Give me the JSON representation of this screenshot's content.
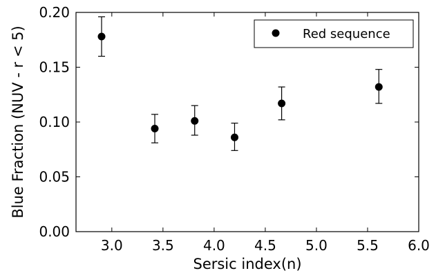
{
  "chart_data": {
    "type": "scatter",
    "title": "",
    "xlabel": "Sersic index(n)",
    "ylabel": "Blue Fraction (NUV - r < 5)",
    "xlim": [
      2.65,
      6.0
    ],
    "ylim": [
      0.0,
      0.2
    ],
    "xticks": [
      3.0,
      3.5,
      4.0,
      4.5,
      5.0,
      5.5,
      6.0
    ],
    "xtick_labels": [
      "3.0",
      "3.5",
      "4.0",
      "4.5",
      "5.0",
      "5.5",
      "6.0"
    ],
    "yticks": [
      0.0,
      0.05,
      0.1,
      0.15,
      0.2
    ],
    "ytick_labels": [
      "0.00",
      "0.05",
      "0.10",
      "0.15",
      "0.20"
    ],
    "grid": false,
    "legend_position": "top-right",
    "series": [
      {
        "name": "Red sequence",
        "color": "#000000",
        "marker": "circle",
        "points": [
          {
            "x": 2.9,
            "y": 0.178,
            "yerr_low": 0.16,
            "yerr_high": 0.196
          },
          {
            "x": 3.42,
            "y": 0.094,
            "yerr_low": 0.081,
            "yerr_high": 0.107
          },
          {
            "x": 3.81,
            "y": 0.101,
            "yerr_low": 0.088,
            "yerr_high": 0.115
          },
          {
            "x": 4.2,
            "y": 0.086,
            "yerr_low": 0.074,
            "yerr_high": 0.099
          },
          {
            "x": 4.66,
            "y": 0.117,
            "yerr_low": 0.102,
            "yerr_high": 0.132
          },
          {
            "x": 5.61,
            "y": 0.132,
            "yerr_low": 0.117,
            "yerr_high": 0.148
          }
        ]
      }
    ]
  }
}
